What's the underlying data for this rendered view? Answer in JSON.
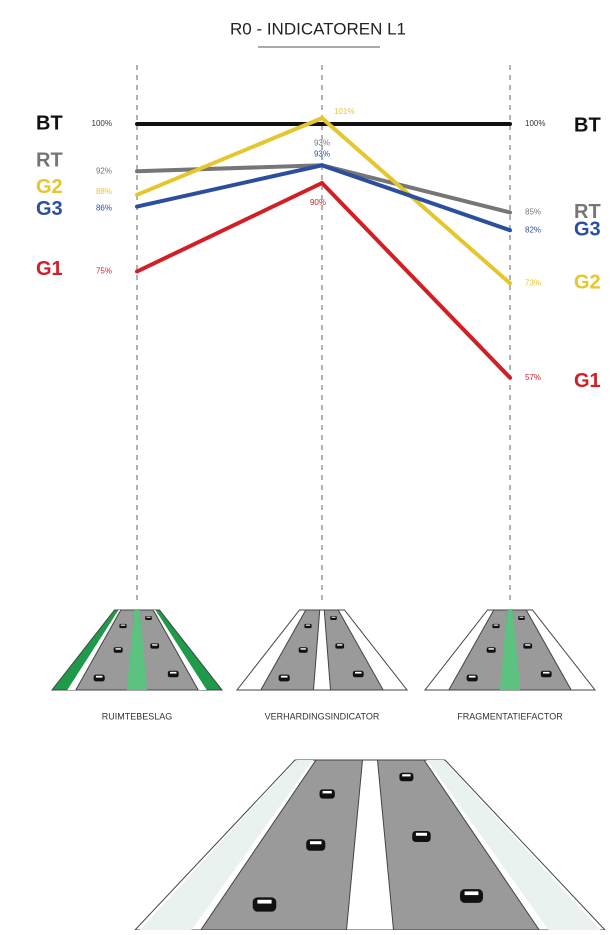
{
  "chart_data": {
    "type": "line",
    "title": "R0 - INDICATOREN L1",
    "categories": [
      "RUIMTEBESLAG",
      "VERHARDINGSINDICATOR",
      "FRAGMENTATIEFACTOR"
    ],
    "ylim": [
      50,
      105
    ],
    "series": [
      {
        "name": "BT",
        "color": "#111111",
        "values": [
          100,
          100,
          100
        ],
        "value_labels": [
          "100%",
          null,
          "100%"
        ]
      },
      {
        "name": "RT",
        "color": "#767676",
        "values": [
          92,
          93,
          85
        ],
        "value_labels": [
          "92%",
          "93%",
          "85%"
        ]
      },
      {
        "name": "G2",
        "color": "#e6c62e",
        "values": [
          88,
          101,
          73
        ],
        "value_labels": [
          "88%",
          "101%",
          "73%"
        ]
      },
      {
        "name": "G3",
        "color": "#2b4f9e",
        "values": [
          86,
          93,
          82
        ],
        "value_labels": [
          "86%",
          "93%",
          "82%"
        ]
      },
      {
        "name": "G1",
        "color": "#d21f26",
        "values": [
          75,
          90,
          57
        ],
        "value_labels": [
          "75%",
          "90%",
          "57%"
        ]
      }
    ]
  }
}
